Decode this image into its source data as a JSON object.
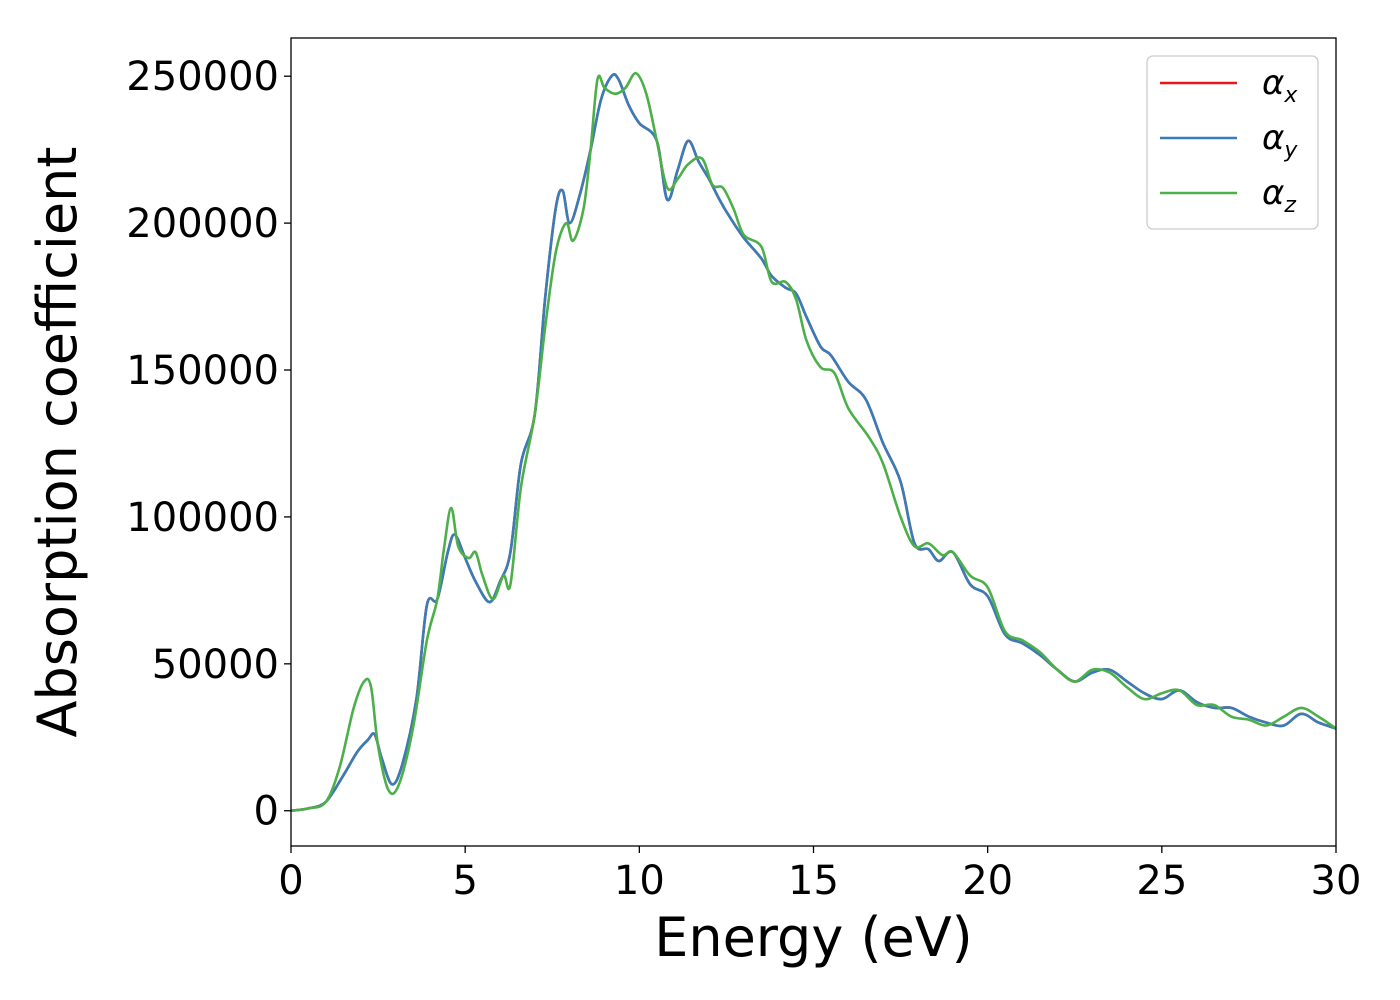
{
  "chart_data": {
    "type": "line",
    "xlabel": "Energy (eV)",
    "ylabel": "Absorption coefficient",
    "xlim": [
      0,
      30
    ],
    "ylim": [
      -12000,
      263000
    ],
    "xticks": [
      0,
      5,
      10,
      15,
      20,
      25,
      30
    ],
    "xtick_labels": [
      "0",
      "5",
      "10",
      "15",
      "20",
      "25",
      "30"
    ],
    "yticks": [
      0,
      50000,
      100000,
      150000,
      200000,
      250000
    ],
    "ytick_labels": [
      "0",
      "50000",
      "100000",
      "150000",
      "200000",
      "250000"
    ],
    "grid": false,
    "legend_position": "top-right",
    "series": [
      {
        "name": "α",
        "subscript": "x",
        "color": "#e41a1c",
        "x": [
          0,
          0.5,
          1.0,
          1.5,
          1.9,
          2.2,
          2.4,
          2.6,
          2.9,
          3.2,
          3.6,
          3.9,
          4.2,
          4.5,
          4.7,
          5.0,
          5.3,
          5.7,
          6.0,
          6.3,
          6.6,
          7.0,
          7.3,
          7.6,
          7.8,
          8.0,
          8.3,
          8.6,
          8.9,
          9.2,
          9.4,
          9.7,
          10.0,
          10.5,
          10.8,
          11.1,
          11.4,
          11.7,
          12.0,
          12.3,
          12.6,
          13.0,
          13.5,
          13.8,
          14.2,
          14.5,
          14.8,
          15.2,
          15.5,
          16.0,
          16.5,
          17.0,
          17.5,
          17.9,
          18.3,
          18.6,
          19.0,
          19.5,
          20.0,
          20.5,
          21.0,
          21.5,
          22.0,
          22.5,
          23.0,
          23.5,
          24.0,
          24.5,
          25.0,
          25.5,
          26.0,
          26.5,
          27.0,
          27.5,
          28.0,
          28.5,
          29.0,
          29.5,
          30.0
        ],
        "y": [
          0,
          800,
          3000,
          12000,
          20000,
          24000,
          26000,
          18000,
          9000,
          16000,
          38000,
          70000,
          72000,
          88000,
          94000,
          86000,
          78000,
          71000,
          78000,
          88000,
          118000,
          135000,
          175000,
          205000,
          211000,
          200000,
          210000,
          225000,
          242000,
          250000,
          249000,
          240000,
          234000,
          228000,
          208000,
          218000,
          228000,
          221000,
          215000,
          208000,
          202000,
          195000,
          188000,
          182000,
          178000,
          176000,
          168000,
          158000,
          155000,
          146000,
          140000,
          125000,
          112000,
          91000,
          89000,
          85000,
          88000,
          77000,
          73000,
          60000,
          57000,
          53000,
          48000,
          44000,
          47000,
          48000,
          44000,
          40000,
          38000,
          41000,
          37000,
          35000,
          35000,
          32000,
          30000,
          29000,
          33000,
          30000,
          28000
        ]
      },
      {
        "name": "α",
        "subscript": "y",
        "color": "#377eb8",
        "x": [
          0,
          0.5,
          1.0,
          1.5,
          1.9,
          2.2,
          2.4,
          2.6,
          2.9,
          3.2,
          3.6,
          3.9,
          4.2,
          4.5,
          4.7,
          5.0,
          5.3,
          5.7,
          6.0,
          6.3,
          6.6,
          7.0,
          7.3,
          7.6,
          7.8,
          8.0,
          8.3,
          8.6,
          8.9,
          9.2,
          9.4,
          9.7,
          10.0,
          10.5,
          10.8,
          11.1,
          11.4,
          11.7,
          12.0,
          12.3,
          12.6,
          13.0,
          13.5,
          13.8,
          14.2,
          14.5,
          14.8,
          15.2,
          15.5,
          16.0,
          16.5,
          17.0,
          17.5,
          17.9,
          18.3,
          18.6,
          19.0,
          19.5,
          20.0,
          20.5,
          21.0,
          21.5,
          22.0,
          22.5,
          23.0,
          23.5,
          24.0,
          24.5,
          25.0,
          25.5,
          26.0,
          26.5,
          27.0,
          27.5,
          28.0,
          28.5,
          29.0,
          29.5,
          30.0
        ],
        "y": [
          0,
          800,
          3000,
          12000,
          20000,
          24000,
          26000,
          18000,
          9000,
          16000,
          38000,
          70000,
          72000,
          88000,
          94000,
          86000,
          78000,
          71000,
          78000,
          88000,
          118000,
          135000,
          175000,
          205000,
          211000,
          200000,
          210000,
          225000,
          242000,
          250000,
          249000,
          240000,
          234000,
          228000,
          208000,
          218000,
          228000,
          221000,
          215000,
          208000,
          202000,
          195000,
          188000,
          182000,
          178000,
          176000,
          168000,
          158000,
          155000,
          146000,
          140000,
          125000,
          112000,
          91000,
          89000,
          85000,
          88000,
          77000,
          73000,
          60000,
          57000,
          53000,
          48000,
          44000,
          47000,
          48000,
          44000,
          40000,
          38000,
          41000,
          37000,
          35000,
          35000,
          32000,
          30000,
          29000,
          33000,
          30000,
          28000
        ]
      },
      {
        "name": "α",
        "subscript": "z",
        "color": "#4daf4a",
        "x": [
          0,
          0.5,
          1.0,
          1.4,
          1.8,
          2.1,
          2.3,
          2.5,
          2.8,
          3.1,
          3.5,
          3.9,
          4.2,
          4.4,
          4.6,
          4.8,
          5.1,
          5.3,
          5.5,
          5.8,
          6.1,
          6.3,
          6.6,
          7.0,
          7.3,
          7.6,
          7.9,
          8.1,
          8.4,
          8.6,
          8.8,
          9.0,
          9.3,
          9.6,
          9.9,
          10.2,
          10.5,
          10.8,
          11.1,
          11.4,
          11.8,
          12.1,
          12.4,
          12.7,
          13.0,
          13.5,
          13.8,
          14.2,
          14.5,
          14.8,
          15.2,
          15.6,
          16.0,
          16.6,
          17.0,
          17.5,
          17.9,
          18.3,
          18.7,
          19.0,
          19.5,
          20.0,
          20.5,
          21.0,
          21.5,
          22.0,
          22.5,
          23.0,
          23.5,
          24.0,
          24.5,
          25.0,
          25.5,
          26.0,
          26.5,
          27.0,
          27.5,
          28.0,
          28.5,
          29.0,
          29.5,
          30.0
        ],
        "y": [
          0,
          800,
          3000,
          15000,
          35000,
          44000,
          42000,
          22000,
          7000,
          9000,
          28000,
          58000,
          72000,
          90000,
          103000,
          90000,
          86000,
          88000,
          80000,
          72000,
          80000,
          77000,
          110000,
          135000,
          165000,
          190000,
          200000,
          194000,
          205000,
          225000,
          249000,
          246000,
          244000,
          246000,
          251000,
          244000,
          228000,
          212000,
          215000,
          220000,
          222000,
          213000,
          212000,
          205000,
          196000,
          192000,
          180000,
          180000,
          174000,
          160000,
          151000,
          149000,
          137000,
          127000,
          118000,
          100000,
          90000,
          91000,
          87000,
          88000,
          80000,
          76000,
          61000,
          58000,
          54000,
          48000,
          44000,
          48000,
          47000,
          42000,
          38000,
          40000,
          41000,
          36000,
          36000,
          32000,
          31000,
          29000,
          32000,
          35000,
          32000,
          28000
        ]
      }
    ]
  }
}
